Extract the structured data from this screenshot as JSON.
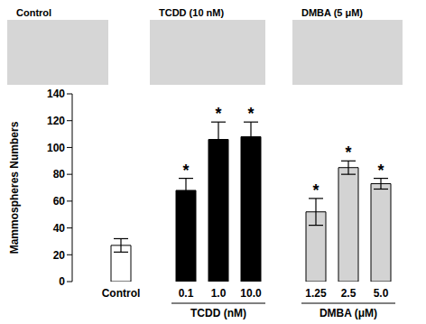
{
  "chart_data": {
    "type": "bar",
    "categories": [
      null,
      "Control",
      null,
      "0.1",
      "1.0",
      "10.0",
      null,
      "1.25",
      "2.5",
      "5.0"
    ],
    "values": [
      null,
      27,
      null,
      68,
      106,
      108,
      null,
      52,
      85,
      73
    ],
    "errors": [
      null,
      5,
      null,
      9,
      13,
      11,
      null,
      10,
      5,
      4
    ],
    "significance": [
      null,
      null,
      null,
      "*",
      "*",
      "*",
      null,
      "*",
      "*",
      "*"
    ],
    "colors": [
      null,
      "#ffffff",
      null,
      "#000000",
      "#000000",
      "#000000",
      null,
      "#d3d3d3",
      "#d3d3d3",
      "#d3d3d3"
    ],
    "ylim": [
      0,
      140
    ],
    "yticks": [
      0,
      20,
      40,
      60,
      80,
      100,
      120,
      140
    ],
    "ylabel": "Mammospheres Numbers",
    "groups": [
      {
        "label": "TCDD (nM)",
        "categories": [
          "0.1",
          "1.0",
          "10.0"
        ]
      },
      {
        "label": "DMBA (μM)",
        "categories": [
          "1.25",
          "2.5",
          "5.0"
        ]
      }
    ],
    "panels": [
      "Control",
      "TCDD (10 nM)",
      "DMBA (5 μM)"
    ]
  }
}
